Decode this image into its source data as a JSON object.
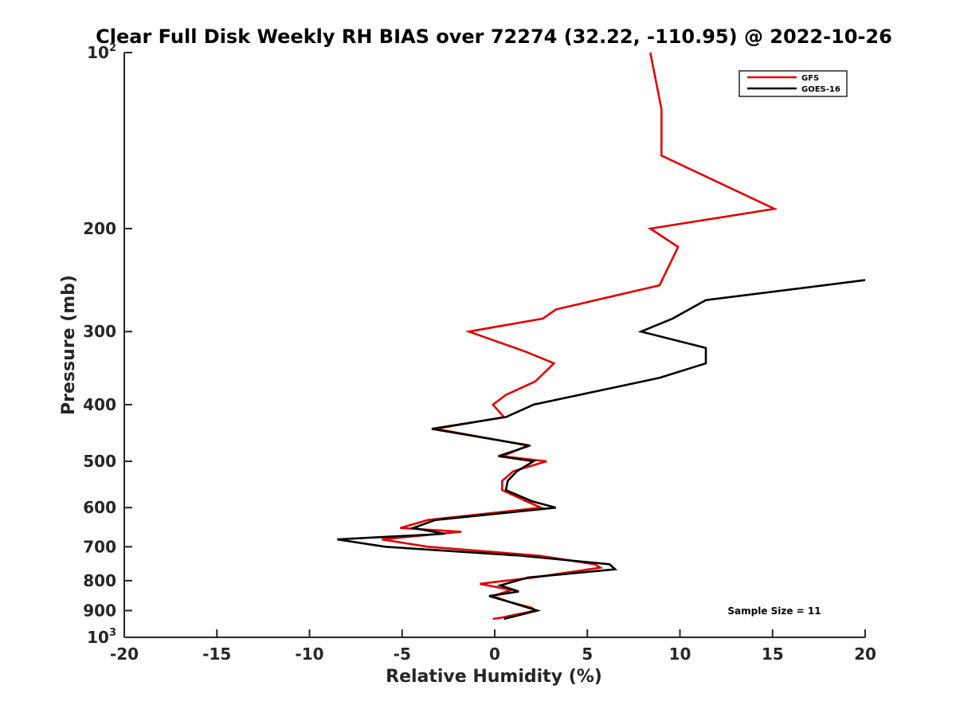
{
  "chart_data": {
    "type": "line",
    "title": "Clear Full Disk Weekly RH BIAS over 72274 (32.22, -110.95) @ 2022-10-26",
    "xlabel": "Relative Humidity (%)",
    "ylabel": "Pressure (mb)",
    "xlim": [
      -20,
      20
    ],
    "ylim": [
      100,
      1000
    ],
    "y_scale": "log",
    "y_reversed": true,
    "grid": false,
    "legend_position": "top-right",
    "x_ticks": [
      -20,
      -15,
      -10,
      -5,
      0,
      5,
      10,
      15,
      20
    ],
    "x_tick_labels": [
      "-20",
      "-15",
      "-10",
      "-5",
      "0",
      "5",
      "10",
      "15",
      "20"
    ],
    "y_ticks": [
      {
        "value": 100,
        "base": "10",
        "exp": "2"
      },
      {
        "value": 200,
        "base": "200",
        "exp": ""
      },
      {
        "value": 300,
        "base": "300",
        "exp": ""
      },
      {
        "value": 400,
        "base": "400",
        "exp": ""
      },
      {
        "value": 500,
        "base": "500",
        "exp": ""
      },
      {
        "value": 600,
        "base": "600",
        "exp": ""
      },
      {
        "value": 700,
        "base": "700",
        "exp": ""
      },
      {
        "value": 800,
        "base": "800",
        "exp": ""
      },
      {
        "value": 900,
        "base": "900",
        "exp": ""
      },
      {
        "value": 1000,
        "base": "10",
        "exp": "3"
      }
    ],
    "series": [
      {
        "name": "GFS",
        "color": "#e00000",
        "points": [
          {
            "x": 8.4,
            "p": 100
          },
          {
            "x": 9.0,
            "p": 125
          },
          {
            "x": 9.0,
            "p": 150
          },
          {
            "x": 15.1,
            "p": 185
          },
          {
            "x": 8.4,
            "p": 200
          },
          {
            "x": 9.9,
            "p": 215
          },
          {
            "x": 8.9,
            "p": 250
          },
          {
            "x": 3.3,
            "p": 275
          },
          {
            "x": 2.6,
            "p": 285
          },
          {
            "x": -1.4,
            "p": 300
          },
          {
            "x": 1.7,
            "p": 325
          },
          {
            "x": 3.2,
            "p": 340
          },
          {
            "x": 2.2,
            "p": 365
          },
          {
            "x": 0.6,
            "p": 385
          },
          {
            "x": -0.1,
            "p": 400
          },
          {
            "x": 0.5,
            "p": 420
          },
          {
            "x": -3.2,
            "p": 440
          },
          {
            "x": 1.8,
            "p": 470
          },
          {
            "x": 0.4,
            "p": 490
          },
          {
            "x": 2.8,
            "p": 500
          },
          {
            "x": 1.0,
            "p": 520
          },
          {
            "x": 0.4,
            "p": 540
          },
          {
            "x": 0.4,
            "p": 560
          },
          {
            "x": 1.7,
            "p": 585
          },
          {
            "x": 2.5,
            "p": 600
          },
          {
            "x": -3.6,
            "p": 630
          },
          {
            "x": -5.1,
            "p": 650
          },
          {
            "x": -1.8,
            "p": 660
          },
          {
            "x": -6.1,
            "p": 680
          },
          {
            "x": -3.6,
            "p": 700
          },
          {
            "x": 2.4,
            "p": 725
          },
          {
            "x": 5.4,
            "p": 750
          },
          {
            "x": 5.7,
            "p": 760
          },
          {
            "x": 2.1,
            "p": 790
          },
          {
            "x": -0.8,
            "p": 810
          },
          {
            "x": 0.9,
            "p": 830
          },
          {
            "x": -0.1,
            "p": 850
          },
          {
            "x": 0.8,
            "p": 870
          },
          {
            "x": 2.0,
            "p": 890
          },
          {
            "x": 2.2,
            "p": 900
          },
          {
            "x": 0.4,
            "p": 925
          },
          {
            "x": -0.1,
            "p": 930
          }
        ]
      },
      {
        "name": "GOES-16",
        "color": "#000000",
        "points": [
          {
            "x": 20.0,
            "p": 245
          },
          {
            "x": 11.4,
            "p": 265
          },
          {
            "x": 9.6,
            "p": 285
          },
          {
            "x": 7.9,
            "p": 300
          },
          {
            "x": 11.4,
            "p": 320
          },
          {
            "x": 11.4,
            "p": 340
          },
          {
            "x": 8.9,
            "p": 360
          },
          {
            "x": 2.1,
            "p": 400
          },
          {
            "x": 0.6,
            "p": 420
          },
          {
            "x": -3.4,
            "p": 440
          },
          {
            "x": 1.9,
            "p": 470
          },
          {
            "x": 0.2,
            "p": 490
          },
          {
            "x": 2.1,
            "p": 500
          },
          {
            "x": 1.2,
            "p": 520
          },
          {
            "x": 0.7,
            "p": 540
          },
          {
            "x": 0.6,
            "p": 560
          },
          {
            "x": 2.0,
            "p": 585
          },
          {
            "x": 3.3,
            "p": 600
          },
          {
            "x": -3.2,
            "p": 630
          },
          {
            "x": -4.4,
            "p": 650
          },
          {
            "x": -2.7,
            "p": 665
          },
          {
            "x": -8.5,
            "p": 680
          },
          {
            "x": -5.9,
            "p": 700
          },
          {
            "x": 1.4,
            "p": 725
          },
          {
            "x": 6.2,
            "p": 750
          },
          {
            "x": 6.5,
            "p": 765
          },
          {
            "x": 1.8,
            "p": 790
          },
          {
            "x": 0.3,
            "p": 815
          },
          {
            "x": 1.3,
            "p": 835
          },
          {
            "x": -0.3,
            "p": 850
          },
          {
            "x": 0.8,
            "p": 870
          },
          {
            "x": 2.3,
            "p": 900
          },
          {
            "x": 0.5,
            "p": 930
          }
        ]
      }
    ],
    "annotation": "Sample Size = 11"
  }
}
